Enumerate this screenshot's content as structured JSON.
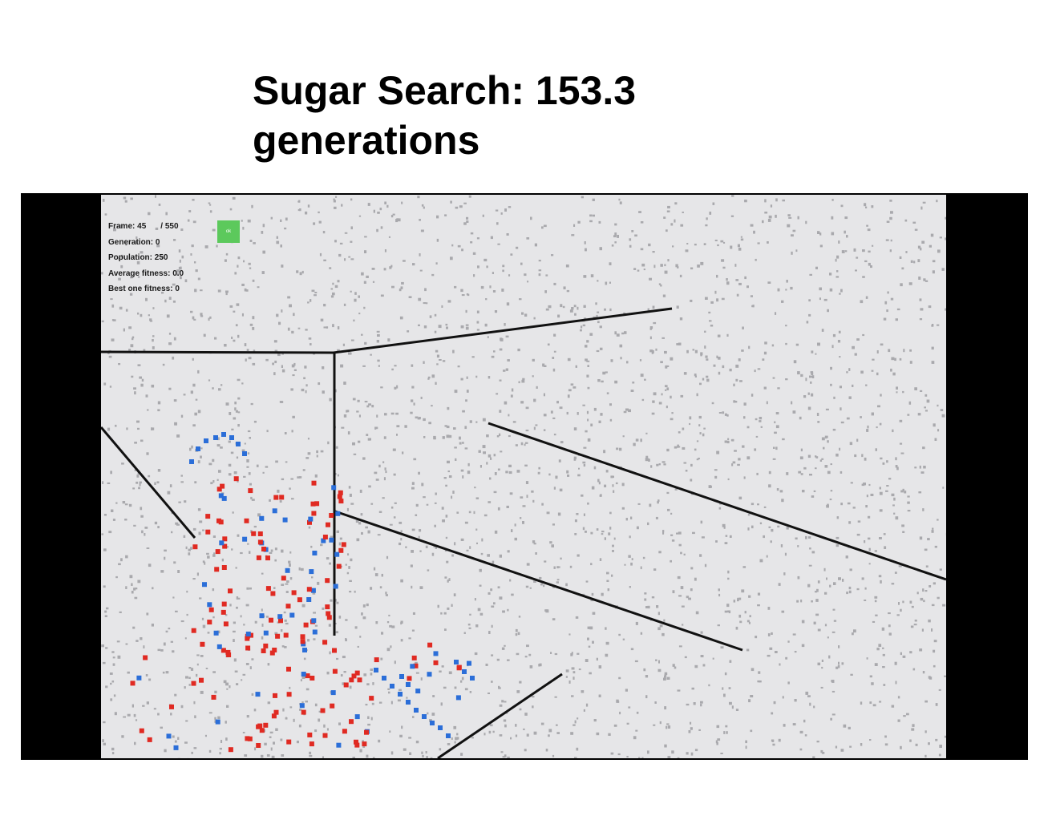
{
  "slide": {
    "title_line1": "Sugar Search: 153.3",
    "title_line2": "generations"
  },
  "simulation": {
    "hud": {
      "frame_label": "Frame:",
      "frame_value": "45",
      "frame_total": "/ 550",
      "generation_label": "Generation:",
      "generation_value": "0",
      "population_label": "Population:",
      "population_value": "250",
      "average_fitness_label": "Average fitness:",
      "average_fitness_value": "0.0",
      "best_fitness_label": "Best one fitness:",
      "best_fitness_value": "0"
    },
    "status_indicator": {
      "color": "#5cc95c",
      "text": "ok"
    },
    "colors": {
      "background": "#e6e6e8",
      "sugar": "#a9a9ad",
      "wall": "#111111",
      "agent_red": "#e02a22",
      "agent_blue": "#2b6ed8"
    }
  }
}
